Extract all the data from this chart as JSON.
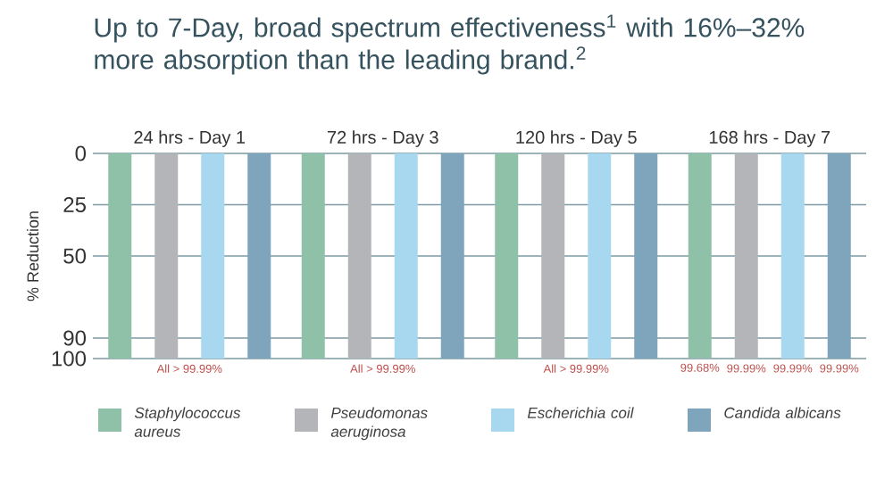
{
  "chart_data": {
    "type": "bar",
    "title": "Up to 7-Day, broad spectrum effectiveness$^{1}$ with 16%–32% more absorption than the leading brand.$^{2}$",
    "ylabel": "% Reduction",
    "categories": [
      "24 hrs - Day 1",
      "72 hrs - Day 3",
      "120 hrs - Day 5",
      "168 hrs - Day 7"
    ],
    "series": [
      {
        "name": "Staphylococcus aureus",
        "color": "#8fc1a9",
        "values": [
          99.99,
          99.99,
          99.99,
          99.68
        ],
        "value_labels": [
          null,
          null,
          null,
          "99.68%"
        ]
      },
      {
        "name": "Pseudomonas aeruginosa",
        "color": "#b3b5b8",
        "values": [
          99.99,
          99.99,
          99.99,
          99.99
        ],
        "value_labels": [
          null,
          null,
          null,
          "99.99%"
        ]
      },
      {
        "name": "Escherichia coil",
        "color": "#a8d8f0",
        "values": [
          99.99,
          99.99,
          99.99,
          99.99
        ],
        "value_labels": [
          null,
          null,
          null,
          "99.99%"
        ]
      },
      {
        "name": "Candida albicans",
        "color": "#7ea5bc",
        "values": [
          99.99,
          99.99,
          99.99,
          99.99
        ],
        "value_labels": [
          null,
          null,
          null,
          "99.99%"
        ]
      }
    ],
    "ylim": [
      100,
      0
    ],
    "yticks": [
      0,
      25,
      50,
      90,
      100
    ],
    "annotations": [
      "All > 99.99%",
      "All > 99.99%",
      "All > 99.99%"
    ],
    "grid": "y",
    "legend": "bottom"
  }
}
